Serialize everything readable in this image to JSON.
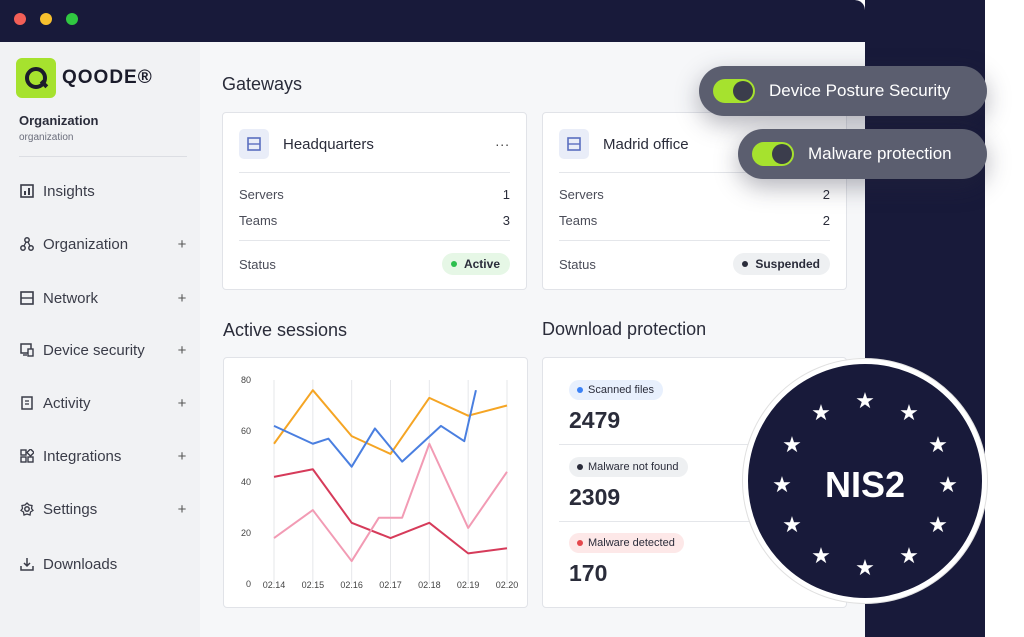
{
  "brand": {
    "name": "QOODE®",
    "logo_icon": "q-logo",
    "accent": "#a6e22e",
    "dark": "#181a3a"
  },
  "org": {
    "name": "Organization",
    "sub": "organization"
  },
  "nav": [
    {
      "label": "Insights",
      "icon": "chart-icon",
      "plus": ""
    },
    {
      "label": "Organization",
      "icon": "nodes-icon",
      "plus": "+"
    },
    {
      "label": "Network",
      "icon": "server-icon",
      "plus": "+"
    },
    {
      "label": "Device security",
      "icon": "device-icon",
      "plus": "+"
    },
    {
      "label": "Activity",
      "icon": "document-icon",
      "plus": "+"
    },
    {
      "label": "Integrations",
      "icon": "grid-icon",
      "plus": "+"
    },
    {
      "label": "Settings",
      "icon": "gear-icon",
      "plus": "+"
    },
    {
      "label": "Downloads",
      "icon": "download-icon",
      "plus": ""
    }
  ],
  "gateways": {
    "title": "Gateways",
    "cards": [
      {
        "name": "Headquarters",
        "more": "...",
        "servers_label": "Servers",
        "servers": "1",
        "teams_label": "Teams",
        "teams": "3",
        "status_label": "Status",
        "status": "Active",
        "status_color": "#2dbf4e",
        "status_bg": "#e6f7e6"
      },
      {
        "name": "Madrid office",
        "more": "",
        "servers_label": "Servers",
        "servers": "2",
        "teams_label": "Teams",
        "teams": "2",
        "status_label": "Status",
        "status": "Suspended",
        "status_color": "#2a2c3a",
        "status_bg": "#eef0f2"
      }
    ]
  },
  "sessions": {
    "title": "Active sessions"
  },
  "chart_data": {
    "type": "line",
    "x": [
      "02.14",
      "02.15",
      "02.16",
      "02.17",
      "02.18",
      "02.19",
      "02.20"
    ],
    "yticks": [
      "0",
      "20",
      "40",
      "60",
      "80"
    ],
    "ylim": [
      0,
      80
    ],
    "series": [
      {
        "color": "#f5a524",
        "points": [
          [
            0,
            55
          ],
          [
            1,
            76
          ],
          [
            2,
            58
          ],
          [
            3,
            51
          ],
          [
            4,
            73
          ],
          [
            5,
            66
          ],
          [
            6,
            70
          ]
        ]
      },
      {
        "color": "#4a7fe0",
        "points": [
          [
            0,
            62
          ],
          [
            1,
            55
          ],
          [
            1.4,
            57
          ],
          [
            2,
            46
          ],
          [
            2.6,
            61
          ],
          [
            3.3,
            48
          ],
          [
            4.3,
            62
          ],
          [
            4.9,
            56
          ],
          [
            5.2,
            76
          ]
        ]
      },
      {
        "color": "#d63b5a",
        "points": [
          [
            0,
            42
          ],
          [
            1,
            45
          ],
          [
            2,
            24
          ],
          [
            3,
            18
          ],
          [
            4,
            24
          ],
          [
            5,
            12
          ],
          [
            6,
            14
          ]
        ]
      },
      {
        "color": "#f29bb4",
        "points": [
          [
            0,
            18
          ],
          [
            1,
            29
          ],
          [
            2,
            9
          ],
          [
            2.7,
            26
          ],
          [
            3.3,
            26
          ],
          [
            4,
            55
          ],
          [
            5,
            22
          ],
          [
            6,
            44
          ]
        ]
      }
    ]
  },
  "download": {
    "title": "Download protection",
    "items": [
      {
        "label": "Scanned files",
        "value": "2479",
        "dot": "#3b82f6",
        "bg": "#e8f0fd"
      },
      {
        "label": "Malware not found",
        "value": "2309",
        "dot": "#2a2c3a",
        "bg": "#eef0f2"
      },
      {
        "label": "Malware detected",
        "value": "170",
        "dot": "#e5484d",
        "bg": "#fde8e8"
      }
    ]
  },
  "toggles": [
    {
      "label": "Device Posture Security"
    },
    {
      "label": "Malware protection"
    }
  ],
  "badge": {
    "text": "NIS2"
  }
}
